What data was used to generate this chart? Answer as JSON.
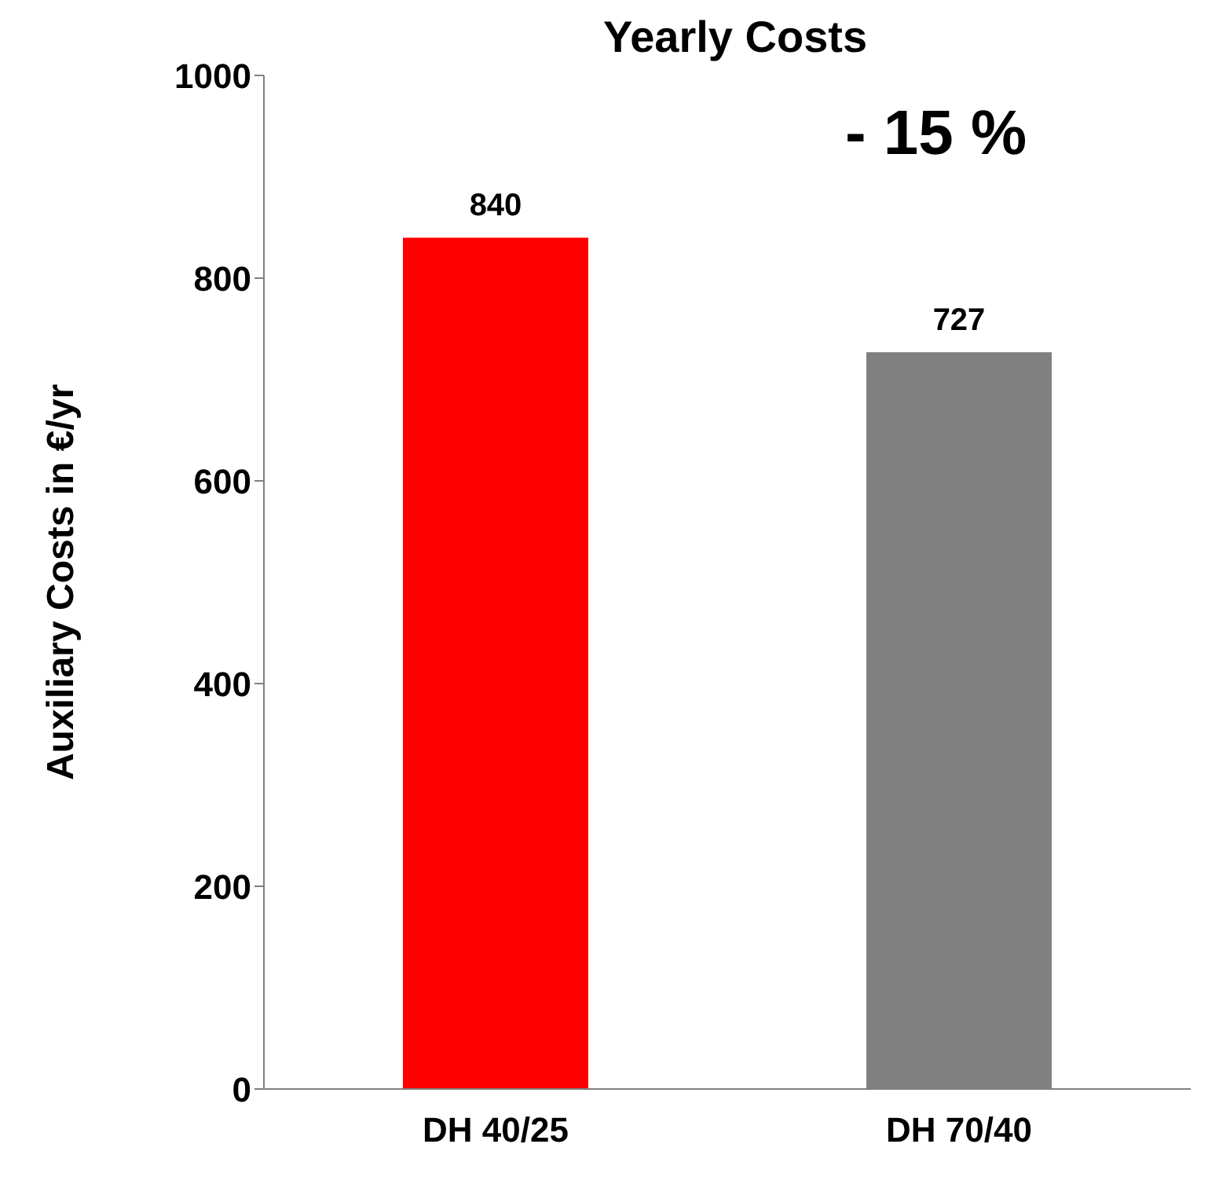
{
  "chart_data": {
    "type": "bar",
    "title": "Yearly Costs",
    "ylabel": "Auxiliary Costs  in  €/yr",
    "categories": [
      "DH 40/25",
      "DH 70/40"
    ],
    "values": [
      840,
      727
    ],
    "colors": [
      "#ff0000",
      "#808080"
    ],
    "ylim": [
      0,
      1000
    ],
    "yticks": [
      0,
      200,
      400,
      600,
      800,
      1000
    ],
    "data_labels": true,
    "annotations": [
      "- 15 %"
    ]
  }
}
